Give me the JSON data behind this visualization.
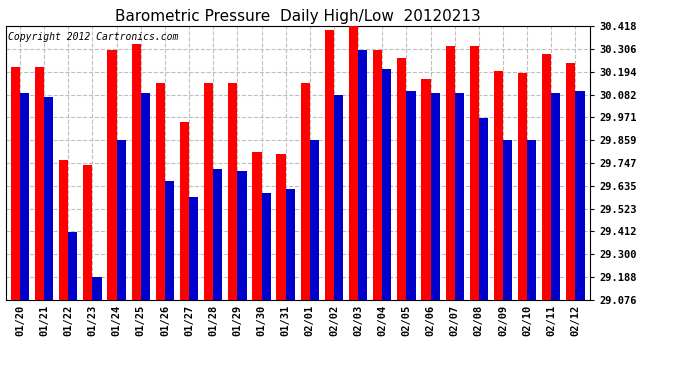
{
  "title": "Barometric Pressure  Daily High/Low  20120213",
  "copyright": "Copyright 2012 Cartronics.com",
  "labels": [
    "01/20",
    "01/21",
    "01/22",
    "01/23",
    "01/24",
    "01/25",
    "01/26",
    "01/27",
    "01/28",
    "01/29",
    "01/30",
    "01/31",
    "02/01",
    "02/02",
    "02/03",
    "02/04",
    "02/05",
    "02/06",
    "02/07",
    "02/08",
    "02/09",
    "02/10",
    "02/11",
    "02/12"
  ],
  "highs": [
    30.22,
    30.22,
    29.76,
    29.74,
    30.3,
    30.33,
    30.14,
    29.95,
    30.14,
    30.14,
    29.8,
    29.79,
    30.14,
    30.4,
    30.44,
    30.3,
    30.26,
    30.16,
    30.32,
    30.32,
    30.2,
    30.19,
    30.28,
    30.24
  ],
  "lows": [
    30.09,
    30.07,
    29.41,
    29.19,
    29.86,
    30.09,
    29.66,
    29.58,
    29.72,
    29.71,
    29.6,
    29.62,
    29.86,
    30.08,
    30.3,
    30.21,
    30.1,
    30.09,
    30.09,
    29.97,
    29.86,
    29.86,
    30.09,
    30.1
  ],
  "high_color": "#ff0000",
  "low_color": "#0000cc",
  "background_color": "#ffffff",
  "plot_bg_color": "#ffffff",
  "grid_color": "#bebebe",
  "ymin": 29.076,
  "ymax": 30.418,
  "yticks": [
    29.076,
    29.188,
    29.3,
    29.412,
    29.523,
    29.635,
    29.747,
    29.859,
    29.971,
    30.082,
    30.194,
    30.306,
    30.418
  ],
  "title_fontsize": 11,
  "tick_fontsize": 7.5,
  "copyright_fontsize": 7
}
